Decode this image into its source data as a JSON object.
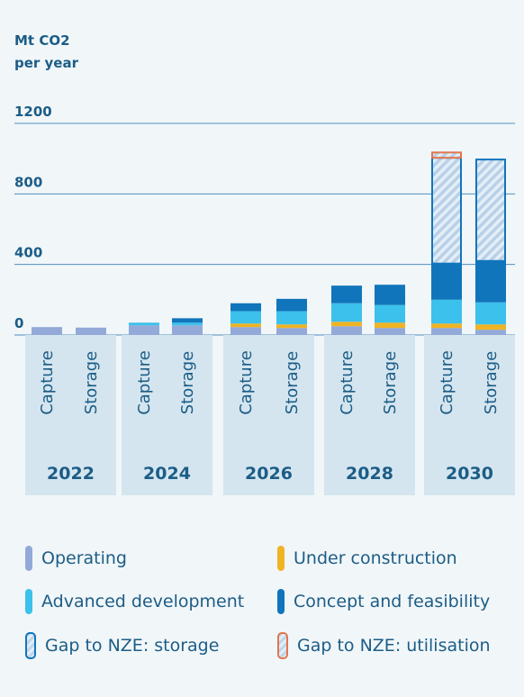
{
  "chart_data": {
    "type": "bar",
    "stacked": true,
    "ylabel_line1": "Mt CO2",
    "ylabel_line2": "per year",
    "ylim": [
      0,
      1200
    ],
    "yticks": [
      0,
      400,
      800,
      1200
    ],
    "grid": true,
    "groups": [
      "2022",
      "2024",
      "2026",
      "2028",
      "2030"
    ],
    "subcategories": [
      "Capture",
      "Storage"
    ],
    "series": [
      {
        "name": "Operating",
        "color": "#93aad8",
        "hatch": false
      },
      {
        "name": "Under construction",
        "color": "#f0b323",
        "hatch": false
      },
      {
        "name": "Advanced development",
        "color": "#3bc1ec",
        "hatch": false
      },
      {
        "name": "Concept and feasibility",
        "color": "#1175bb",
        "hatch": false
      },
      {
        "name": "Gap to NZE: storage",
        "color": "#1175bb",
        "hatch": true
      },
      {
        "name": "Gap to NZE: utilisation",
        "color": "#e2764e",
        "hatch": true
      }
    ],
    "bars": [
      {
        "group": "2022",
        "sub": "Capture",
        "values": [
          45,
          0,
          0,
          0,
          0,
          0
        ]
      },
      {
        "group": "2022",
        "sub": "Storage",
        "values": [
          42,
          0,
          0,
          0,
          0,
          0
        ]
      },
      {
        "group": "2024",
        "sub": "Capture",
        "values": [
          55,
          0,
          15,
          0,
          0,
          0
        ]
      },
      {
        "group": "2024",
        "sub": "Storage",
        "values": [
          55,
          0,
          15,
          25,
          0,
          0
        ]
      },
      {
        "group": "2026",
        "sub": "Capture",
        "values": [
          45,
          20,
          70,
          45,
          0,
          0
        ]
      },
      {
        "group": "2026",
        "sub": "Storage",
        "values": [
          40,
          20,
          75,
          70,
          0,
          0
        ]
      },
      {
        "group": "2028",
        "sub": "Capture",
        "values": [
          50,
          25,
          105,
          100,
          0,
          0
        ]
      },
      {
        "group": "2028",
        "sub": "Storage",
        "values": [
          40,
          30,
          100,
          115,
          0,
          0
        ]
      },
      {
        "group": "2030",
        "sub": "Capture",
        "values": [
          40,
          25,
          135,
          205,
          600,
          30
        ]
      },
      {
        "group": "2030",
        "sub": "Storage",
        "values": [
          30,
          30,
          125,
          235,
          575,
          0
        ]
      }
    ]
  },
  "legend": {
    "items": [
      {
        "label": "Operating"
      },
      {
        "label": "Under construction"
      },
      {
        "label": "Advanced development"
      },
      {
        "label": "Concept and feasibility"
      },
      {
        "label": "Gap to NZE: storage"
      },
      {
        "label": "Gap to NZE: utilisation"
      }
    ]
  }
}
